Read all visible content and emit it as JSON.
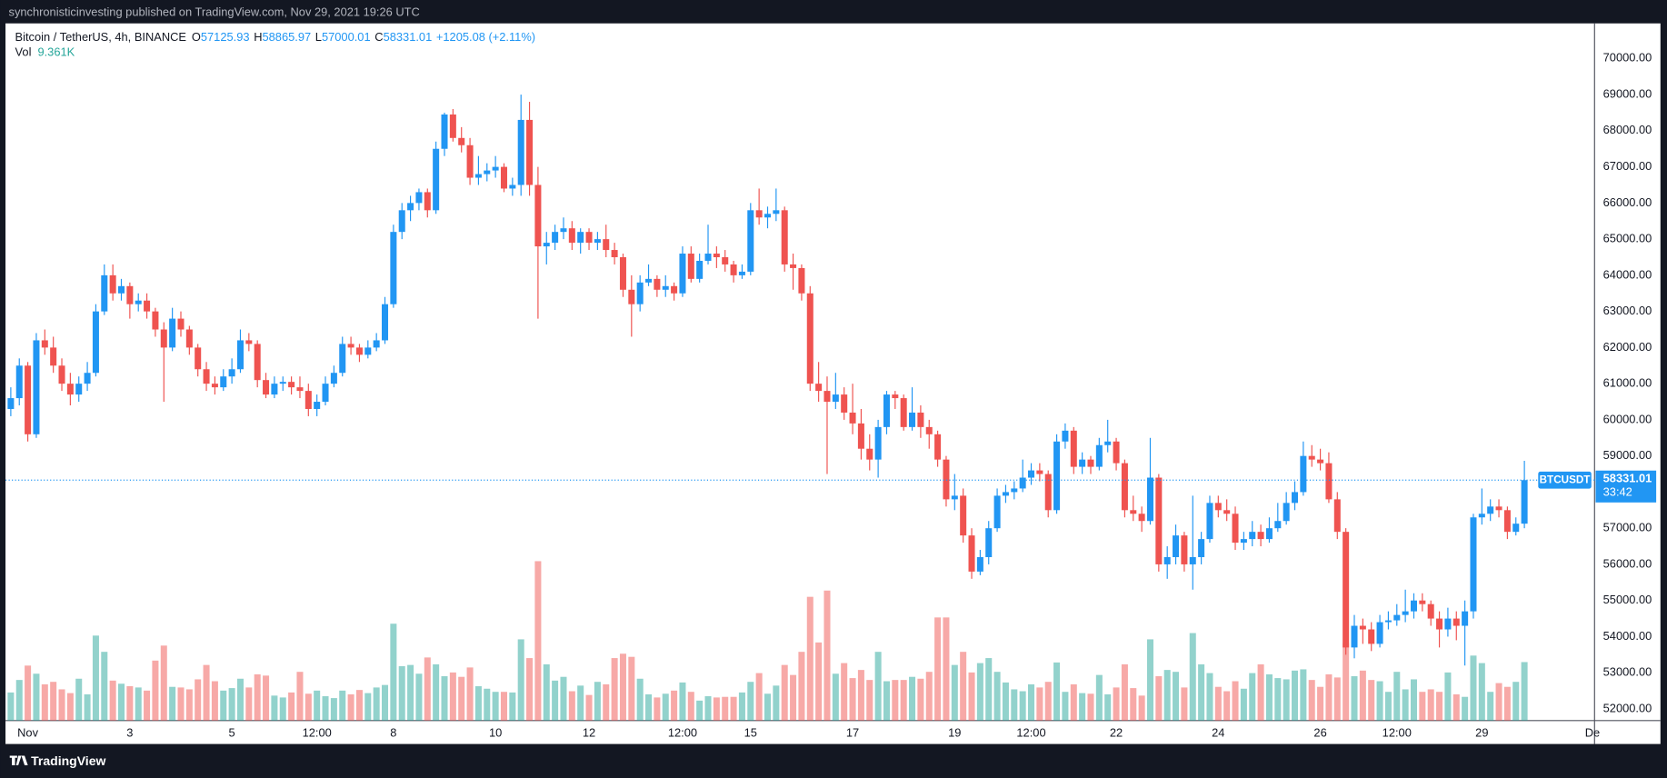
{
  "header": {
    "published": "synchronisticinvesting published on TradingView.com, Nov 29, 2021 19:26 UTC"
  },
  "footer": {
    "brand": "TradingView"
  },
  "chart_data": {
    "type": "candlestick",
    "legend": {
      "symbol": "Bitcoin / TetherUS, 4h, BINANCE",
      "o": "O",
      "h": "H",
      "l": "L",
      "c": "C",
      "change": "+1205.08 (+2.11%)"
    },
    "symbol_tag": "BTCUSDT",
    "countdown": "33:42",
    "up_color": "#2196f3",
    "down_color": "#ef5350",
    "volume_up_color": "#26a69a",
    "volume_down_color": "#ef5350",
    "xlim": [
      -0.625,
      186.25
    ],
    "ylim": [
      51676,
      70971
    ],
    "xticks": [
      {
        "value": 2,
        "label": "Nov"
      },
      {
        "value": 14,
        "label": "3"
      },
      {
        "value": 26,
        "label": "5"
      },
      {
        "value": 36,
        "label": "12:00"
      },
      {
        "value": 45,
        "label": "8"
      },
      {
        "value": 57,
        "label": "10"
      },
      {
        "value": 68,
        "label": "12"
      },
      {
        "value": 79,
        "label": "12:00"
      },
      {
        "value": 87,
        "label": "15"
      },
      {
        "value": 99,
        "label": "17"
      },
      {
        "value": 111,
        "label": "19"
      },
      {
        "value": 120,
        "label": "12:00"
      },
      {
        "value": 130,
        "label": "22"
      },
      {
        "value": 142,
        "label": "24"
      },
      {
        "value": 154,
        "label": "26"
      },
      {
        "value": 163,
        "label": "12:00"
      },
      {
        "value": 173,
        "label": "29"
      },
      {
        "value": 186,
        "label": "De"
      }
    ],
    "yticks": [
      {
        "value": 70000,
        "label": "70000.00"
      },
      {
        "value": 69000,
        "label": "69000.00"
      },
      {
        "value": 68000,
        "label": "68000.00"
      },
      {
        "value": 67000,
        "label": "67000.00"
      },
      {
        "value": 66000,
        "label": "66000.00"
      },
      {
        "value": 65000,
        "label": "65000.00"
      },
      {
        "value": 64000,
        "label": "64000.00"
      },
      {
        "value": 63000,
        "label": "63000.00"
      },
      {
        "value": 62000,
        "label": "62000.00"
      },
      {
        "value": 61000,
        "label": "61000.00"
      },
      {
        "value": 60000,
        "label": "60000.00"
      },
      {
        "value": 59000,
        "label": "59000.00"
      },
      {
        "value": 58000,
        "label": "58000.00"
      },
      {
        "value": 57000,
        "label": "57000.00"
      },
      {
        "value": 56000,
        "label": "56000.00"
      },
      {
        "value": 55000,
        "label": "55000.00"
      },
      {
        "value": 54000,
        "label": "54000.00"
      },
      {
        "value": 53000,
        "label": "53000.00"
      },
      {
        "value": 52000,
        "label": "52000.00"
      }
    ],
    "candles": [
      [
        60300,
        60900,
        60100,
        60600
      ],
      [
        60600,
        61700,
        60400,
        61500
      ],
      [
        61500,
        61600,
        59400,
        59600
      ],
      [
        59600,
        62400,
        59500,
        62200
      ],
      [
        62200,
        62500,
        61800,
        62000
      ],
      [
        62000,
        62300,
        61300,
        61500
      ],
      [
        61500,
        61700,
        60800,
        61000
      ],
      [
        61000,
        61300,
        60400,
        60700
      ],
      [
        60700,
        61200,
        60500,
        61000
      ],
      [
        61000,
        61600,
        60800,
        61300
      ],
      [
        61300,
        63200,
        61200,
        63000
      ],
      [
        63000,
        64300,
        62900,
        64000
      ],
      [
        64000,
        64300,
        63300,
        63500
      ],
      [
        63500,
        63900,
        63300,
        63700
      ],
      [
        63700,
        63800,
        62800,
        63200
      ],
      [
        63200,
        63500,
        63000,
        63300
      ],
      [
        63300,
        63500,
        62800,
        63000
      ],
      [
        63000,
        63100,
        62300,
        62500
      ],
      [
        62500,
        62700,
        60500,
        62000
      ],
      [
        62000,
        63100,
        61900,
        62800
      ],
      [
        62800,
        63000,
        62300,
        62500
      ],
      [
        62500,
        62600,
        61800,
        62000
      ],
      [
        62000,
        62100,
        61200,
        61400
      ],
      [
        61400,
        61600,
        60800,
        61000
      ],
      [
        61000,
        61200,
        60700,
        60900
      ],
      [
        60900,
        61400,
        60800,
        61200
      ],
      [
        61200,
        61700,
        61000,
        61400
      ],
      [
        61400,
        62500,
        61300,
        62200
      ],
      [
        62200,
        62400,
        61900,
        62100
      ],
      [
        62100,
        62200,
        60900,
        61100
      ],
      [
        61100,
        61300,
        60600,
        60700
      ],
      [
        60700,
        61200,
        60600,
        61000
      ],
      [
        61000,
        61200,
        60800,
        61050
      ],
      [
        61050,
        61200,
        60700,
        60900
      ],
      [
        60900,
        61200,
        60600,
        60800
      ],
      [
        60800,
        61000,
        60100,
        60300
      ],
      [
        60300,
        60700,
        60100,
        60500
      ],
      [
        60500,
        61200,
        60400,
        61000
      ],
      [
        61000,
        61500,
        60900,
        61300
      ],
      [
        61300,
        62300,
        61200,
        62100
      ],
      [
        62100,
        62300,
        61800,
        62000
      ],
      [
        62000,
        62100,
        61600,
        61800
      ],
      [
        61800,
        62200,
        61700,
        62000
      ],
      [
        62000,
        62400,
        61900,
        62200
      ],
      [
        62200,
        63400,
        62100,
        63200
      ],
      [
        63200,
        65400,
        63100,
        65200
      ],
      [
        65200,
        66000,
        65000,
        65800
      ],
      [
        65800,
        66200,
        65500,
        66000
      ],
      [
        66000,
        66400,
        65800,
        66300
      ],
      [
        66300,
        66400,
        65600,
        65800
      ],
      [
        65800,
        67700,
        65700,
        67500
      ],
      [
        67500,
        68500,
        67300,
        68450
      ],
      [
        68450,
        68600,
        67700,
        67800
      ],
      [
        67800,
        68100,
        67400,
        67600
      ],
      [
        67600,
        67800,
        66500,
        66700
      ],
      [
        66700,
        67300,
        66500,
        66800
      ],
      [
        66800,
        67100,
        66600,
        66900
      ],
      [
        66900,
        67300,
        66700,
        67000
      ],
      [
        67000,
        67100,
        66300,
        66400
      ],
      [
        66400,
        66700,
        66200,
        66500
      ],
      [
        66500,
        69000,
        66200,
        68300
      ],
      [
        68300,
        68800,
        66200,
        66500
      ],
      [
        66500,
        67000,
        62800,
        64800
      ],
      [
        64800,
        65200,
        64300,
        64900
      ],
      [
        64900,
        65400,
        64700,
        65200
      ],
      [
        65200,
        65600,
        65000,
        65300
      ],
      [
        65300,
        65500,
        64700,
        64900
      ],
      [
        64900,
        65300,
        64600,
        65200
      ],
      [
        65200,
        65300,
        64700,
        64900
      ],
      [
        64900,
        65200,
        64700,
        65000
      ],
      [
        65000,
        65400,
        64500,
        64700
      ],
      [
        64700,
        64900,
        64300,
        64500
      ],
      [
        64500,
        64600,
        63400,
        63600
      ],
      [
        63600,
        64000,
        62300,
        63200
      ],
      [
        63200,
        64000,
        63000,
        63800
      ],
      [
        63800,
        64300,
        63700,
        63900
      ],
      [
        63900,
        64000,
        63400,
        63600
      ],
      [
        63600,
        64000,
        63400,
        63700
      ],
      [
        63700,
        63800,
        63300,
        63500
      ],
      [
        63500,
        64800,
        63400,
        64600
      ],
      [
        64600,
        64800,
        63800,
        63900
      ],
      [
        63900,
        64600,
        63800,
        64400
      ],
      [
        64400,
        65400,
        64300,
        64600
      ],
      [
        64600,
        64800,
        64200,
        64500
      ],
      [
        64500,
        64700,
        64100,
        64300
      ],
      [
        64300,
        64400,
        63800,
        64000
      ],
      [
        64000,
        64300,
        63900,
        64100
      ],
      [
        64100,
        66000,
        64000,
        65800
      ],
      [
        65800,
        66400,
        65400,
        65600
      ],
      [
        65600,
        65900,
        65300,
        65700
      ],
      [
        65700,
        66400,
        65500,
        65800
      ],
      [
        65800,
        65900,
        64100,
        64300
      ],
      [
        64300,
        64600,
        63600,
        64200
      ],
      [
        64200,
        64300,
        63300,
        63500
      ],
      [
        63500,
        63700,
        60800,
        61000
      ],
      [
        61000,
        61600,
        60500,
        60800
      ],
      [
        60800,
        61200,
        58500,
        60500
      ],
      [
        60500,
        61300,
        60300,
        60700
      ],
      [
        60700,
        60900,
        60000,
        60200
      ],
      [
        60200,
        61000,
        59600,
        59900
      ],
      [
        59900,
        60300,
        58900,
        59200
      ],
      [
        59200,
        59600,
        58600,
        58900
      ],
      [
        58900,
        60000,
        58400,
        59800
      ],
      [
        59800,
        60800,
        59600,
        60700
      ],
      [
        60700,
        60800,
        60300,
        60600
      ],
      [
        60600,
        60700,
        59700,
        59800
      ],
      [
        59800,
        60900,
        59700,
        60200
      ],
      [
        60200,
        60400,
        59500,
        59800
      ],
      [
        59800,
        60000,
        59200,
        59600
      ],
      [
        59600,
        59700,
        58700,
        58900
      ],
      [
        58900,
        59000,
        57600,
        57800
      ],
      [
        57800,
        58500,
        57500,
        57900
      ],
      [
        57900,
        58100,
        56600,
        56800
      ],
      [
        56800,
        57000,
        55600,
        55800
      ],
      [
        55800,
        56400,
        55700,
        56200
      ],
      [
        56200,
        57200,
        56000,
        57000
      ],
      [
        57000,
        58100,
        56900,
        57900
      ],
      [
        57900,
        58200,
        57700,
        58000
      ],
      [
        58000,
        58300,
        57800,
        58100
      ],
      [
        58100,
        58900,
        58000,
        58400
      ],
      [
        58400,
        58800,
        58200,
        58600
      ],
      [
        58600,
        58800,
        58300,
        58500
      ],
      [
        58500,
        58600,
        57300,
        57500
      ],
      [
        57500,
        59600,
        57400,
        59400
      ],
      [
        59400,
        59900,
        59200,
        59700
      ],
      [
        59700,
        59800,
        58500,
        58700
      ],
      [
        58700,
        59100,
        58500,
        58900
      ],
      [
        58900,
        59000,
        58500,
        58700
      ],
      [
        58700,
        59500,
        58600,
        59300
      ],
      [
        59300,
        60000,
        59100,
        59400
      ],
      [
        59400,
        59500,
        58600,
        58800
      ],
      [
        58800,
        58900,
        57300,
        57500
      ],
      [
        57500,
        57900,
        57200,
        57400
      ],
      [
        57400,
        57600,
        56900,
        57200
      ],
      [
        57200,
        59500,
        57100,
        58400
      ],
      [
        58400,
        58500,
        55800,
        56000
      ],
      [
        56000,
        56500,
        55600,
        56200
      ],
      [
        56200,
        57100,
        56000,
        56800
      ],
      [
        56800,
        56900,
        55800,
        56000
      ],
      [
        56000,
        57900,
        55300,
        56200
      ],
      [
        56200,
        56900,
        56000,
        56700
      ],
      [
        56700,
        57900,
        56600,
        57700
      ],
      [
        57700,
        57900,
        57300,
        57500
      ],
      [
        57500,
        57800,
        57200,
        57400
      ],
      [
        57400,
        57600,
        56400,
        56600
      ],
      [
        56600,
        56900,
        56400,
        56700
      ],
      [
        56700,
        57200,
        56500,
        56900
      ],
      [
        56900,
        57100,
        56500,
        56700
      ],
      [
        56700,
        57300,
        56600,
        57000
      ],
      [
        57000,
        57700,
        56900,
        57200
      ],
      [
        57200,
        58000,
        57100,
        57700
      ],
      [
        57700,
        58300,
        57500,
        58000
      ],
      [
        58000,
        59400,
        57900,
        59000
      ],
      [
        59000,
        59300,
        58700,
        58900
      ],
      [
        58900,
        59200,
        58600,
        58800
      ],
      [
        58800,
        59100,
        57700,
        57800
      ],
      [
        57800,
        58000,
        56700,
        56900
      ],
      [
        56900,
        57000,
        53500,
        53700
      ],
      [
        53700,
        54600,
        53400,
        54300
      ],
      [
        54300,
        54500,
        53800,
        54200
      ],
      [
        54200,
        54400,
        53600,
        53800
      ],
      [
        53800,
        54600,
        53700,
        54400
      ],
      [
        54400,
        54700,
        54200,
        54450
      ],
      [
        54450,
        54900,
        54300,
        54600
      ],
      [
        54600,
        55300,
        54400,
        54700
      ],
      [
        54700,
        55200,
        54500,
        55000
      ],
      [
        55000,
        55200,
        54700,
        54900
      ],
      [
        54900,
        55000,
        54300,
        54500
      ],
      [
        54500,
        54700,
        53700,
        54200
      ],
      [
        54200,
        54800,
        54000,
        54500
      ],
      [
        54500,
        54700,
        53900,
        54300
      ],
      [
        54300,
        55000,
        53200,
        54700
      ],
      [
        54700,
        57400,
        54500,
        57300
      ],
      [
        57300,
        58100,
        57100,
        57400
      ],
      [
        57400,
        57800,
        57200,
        57600
      ],
      [
        57600,
        57800,
        57300,
        57500
      ],
      [
        57500,
        57600,
        56700,
        56900
      ],
      [
        56900,
        57300,
        56800,
        57125.93
      ],
      [
        57125.93,
        58865.97,
        57000.01,
        58331.01
      ]
    ],
    "volume": {
      "name": "Vol",
      "last_label": "9.361K",
      "values": [
        4500,
        6500,
        8800,
        7500,
        5800,
        6200,
        5000,
        4400,
        6700,
        4200,
        13600,
        11000,
        6400,
        5900,
        5500,
        5300,
        4800,
        9600,
        12000,
        5400,
        5300,
        5000,
        6600,
        8900,
        6300,
        4800,
        5200,
        6700,
        5300,
        7400,
        7200,
        4000,
        3700,
        4500,
        7800,
        4300,
        4800,
        3900,
        3600,
        4800,
        4200,
        4900,
        4400,
        5300,
        5700,
        15500,
        8700,
        8900,
        7500,
        10100,
        9000,
        7100,
        7700,
        7000,
        8500,
        5500,
        5100,
        4600,
        4600,
        4500,
        13000,
        10000,
        25500,
        9000,
        6400,
        7000,
        4700,
        5600,
        4100,
        6200,
        5800,
        10000,
        10700,
        10200,
        6700,
        4200,
        3700,
        4300,
        4800,
        6100,
        4600,
        3200,
        3900,
        3700,
        3800,
        3800,
        4500,
        6200,
        7600,
        4300,
        5600,
        8900,
        7300,
        11000,
        19800,
        12500,
        20800,
        7500,
        9200,
        6800,
        8100,
        6500,
        11000,
        6300,
        6500,
        6500,
        7000,
        6700,
        7800,
        16500,
        16500,
        8900,
        11000,
        7700,
        9200,
        10000,
        7800,
        6100,
        5000,
        4700,
        5800,
        5300,
        6200,
        9300,
        4600,
        5800,
        4400,
        4300,
        7300,
        4200,
        5300,
        9000,
        5200,
        4000,
        13000,
        7100,
        8100,
        7800,
        5300,
        14000,
        9000,
        7600,
        5400,
        4700,
        6300,
        5100,
        7600,
        9000,
        7400,
        6800,
        6600,
        8000,
        8200,
        6500,
        5400,
        7400,
        6900,
        12400,
        7100,
        8000,
        6500,
        6300,
        4600,
        7800,
        5000,
        6600,
        4600,
        5000,
        4600,
        7700,
        4200,
        3800,
        10400,
        9200,
        4600,
        6000,
        5400,
        6200,
        9361
      ]
    }
  }
}
